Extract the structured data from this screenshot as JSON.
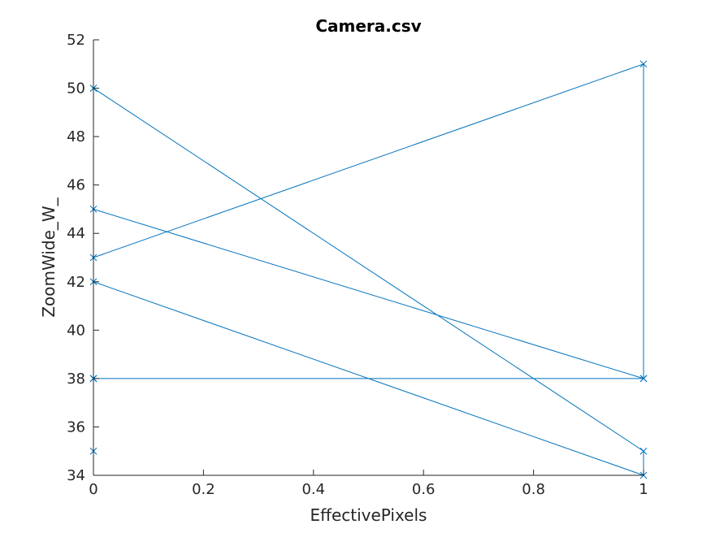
{
  "chart_data": {
    "type": "line",
    "title": "Camera.csv",
    "xlabel": "EffectivePixels",
    "ylabel": "ZoomWide_W_",
    "xlim": [
      0,
      1
    ],
    "ylim": [
      34,
      52
    ],
    "xticks": [
      0,
      0.2,
      0.4,
      0.6,
      0.8,
      1
    ],
    "xtick_labels": [
      "0",
      "0.2",
      "0.4",
      "0.6",
      "0.8",
      "1"
    ],
    "yticks": [
      34,
      36,
      38,
      40,
      42,
      44,
      46,
      48,
      50,
      52
    ],
    "ytick_labels": [
      "34",
      "36",
      "38",
      "40",
      "42",
      "44",
      "46",
      "48",
      "50",
      "52"
    ],
    "grid": false,
    "color": "#0072BD",
    "marker": "x",
    "series": [
      {
        "x": [
          0,
          0,
          0,
          1,
          1,
          0,
          0,
          1,
          1,
          0,
          0,
          1,
          0,
          0
        ],
        "y": [
          35,
          38,
          50,
          35,
          34,
          42,
          43,
          51,
          38,
          38,
          45,
          38,
          38,
          50
        ]
      }
    ]
  }
}
